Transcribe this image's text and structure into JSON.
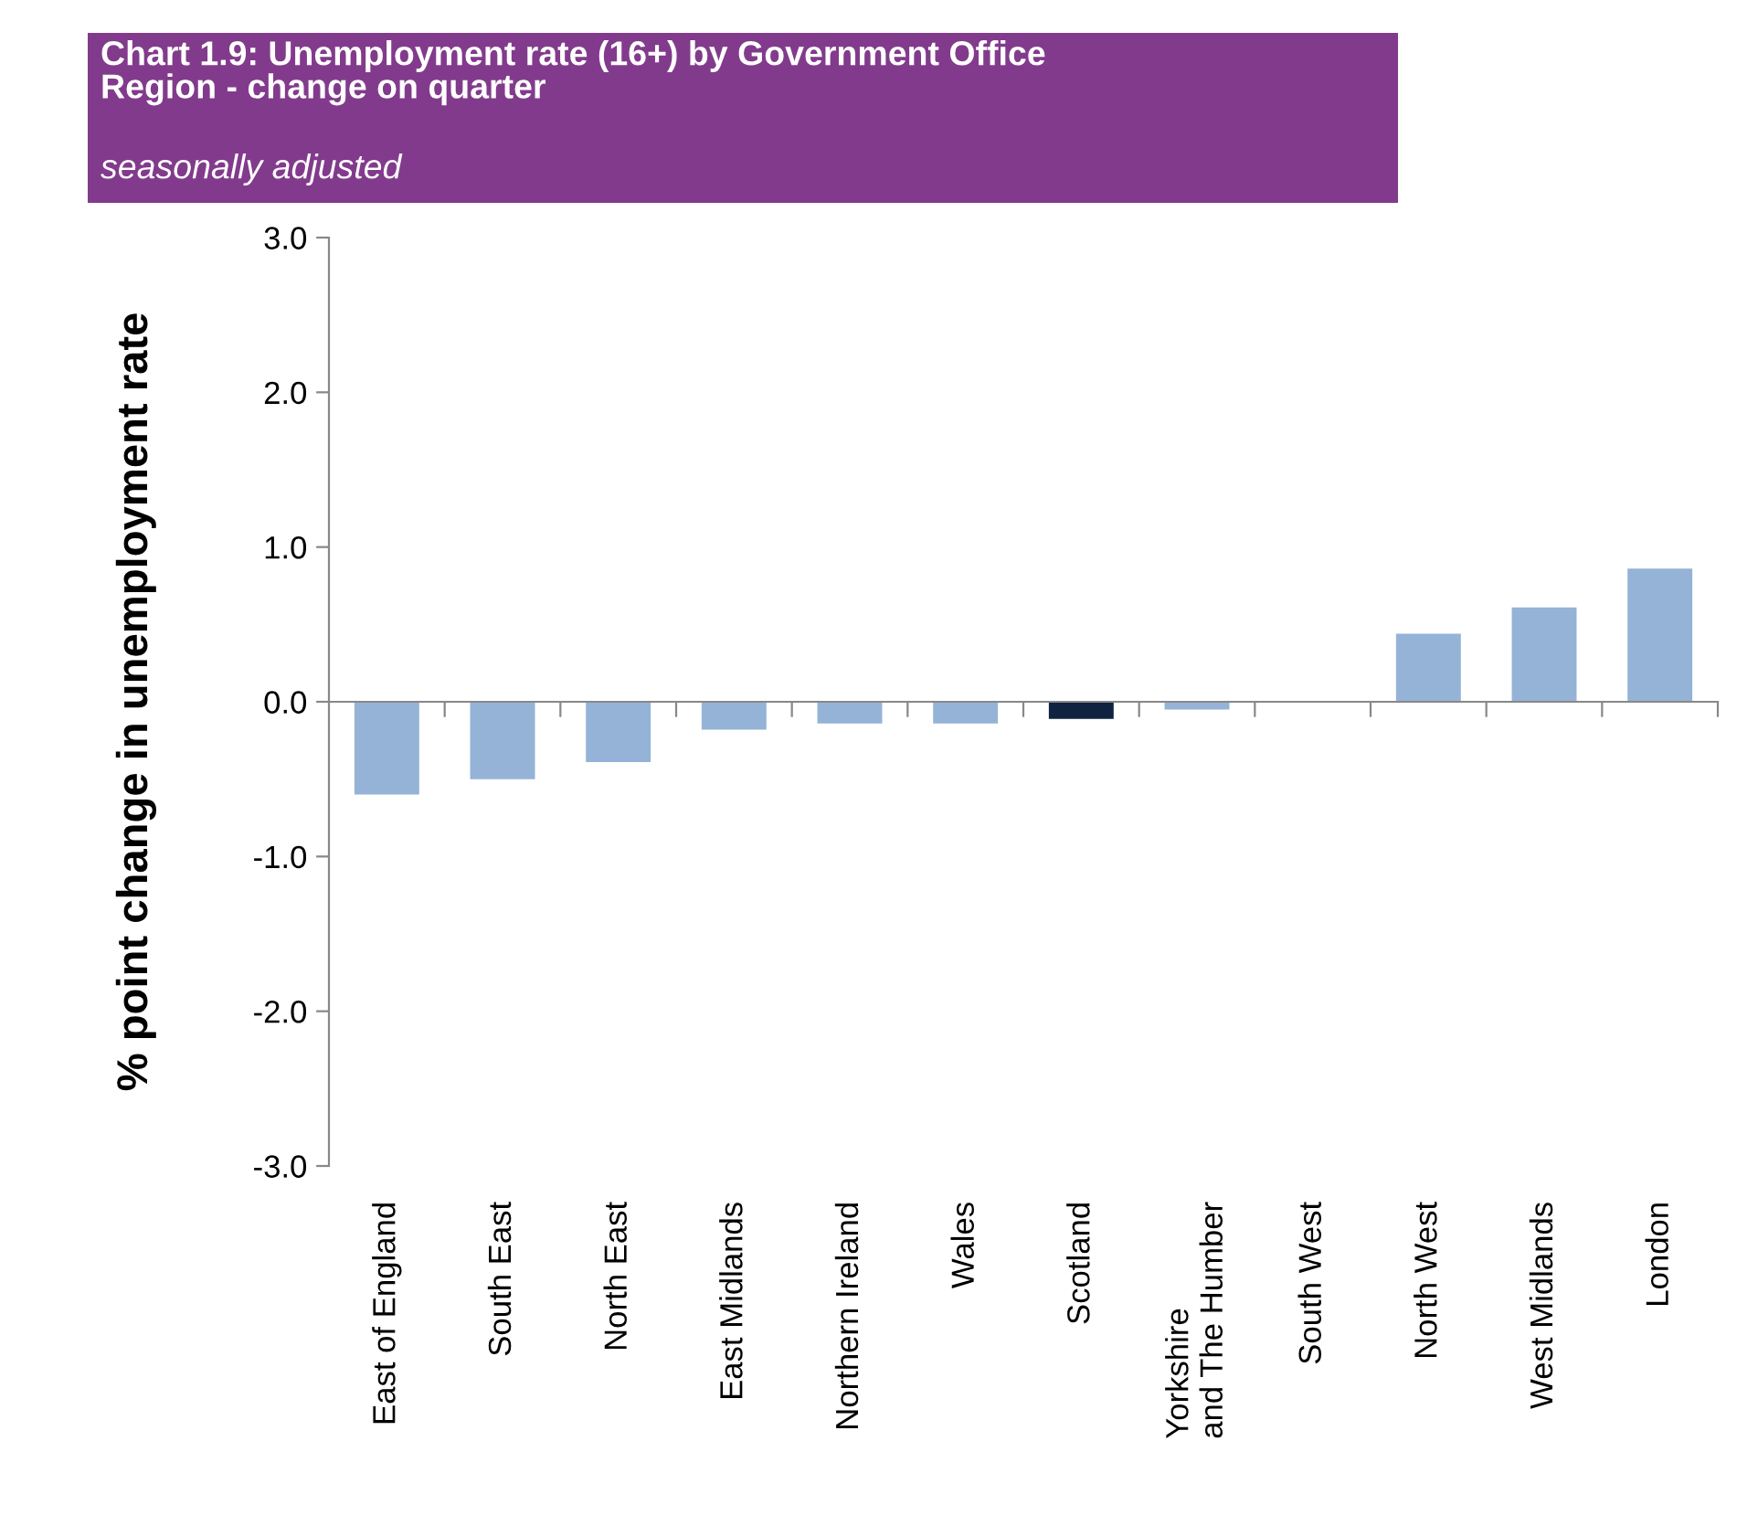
{
  "chart_data": {
    "type": "bar",
    "title": "Chart 1.9: Unemployment rate (16+) by Government Office\nRegion - change on quarter",
    "subtitle": "seasonally adjusted",
    "ylabel": "% point change in unemployment rate",
    "categories": [
      "East of England",
      "South East",
      "North East",
      "East Midlands",
      "Northern Ireland",
      "Wales",
      "Scotland",
      "Yorkshire\nand The Humber",
      "South West",
      "North West",
      "West Midlands",
      "London"
    ],
    "values": [
      -0.6,
      -0.5,
      -0.39,
      -0.18,
      -0.14,
      -0.14,
      -0.11,
      -0.05,
      0.0,
      0.44,
      0.61,
      0.86
    ],
    "colors": [
      "#95b3d7",
      "#95b3d7",
      "#95b3d7",
      "#95b3d7",
      "#95b3d7",
      "#95b3d7",
      "#0f2340",
      "#95b3d7",
      "#95b3d7",
      "#95b3d7",
      "#95b3d7",
      "#95b3d7"
    ],
    "ylim": [
      -3.0,
      3.0
    ],
    "yticks": [
      {
        "value": -3.0,
        "label": "-3.0"
      },
      {
        "value": -2.0,
        "label": "-2.0"
      },
      {
        "value": -1.0,
        "label": "-1.0"
      },
      {
        "value": 0.0,
        "label": "0.0"
      },
      {
        "value": 1.0,
        "label": "1.0"
      },
      {
        "value": 2.0,
        "label": "2.0"
      },
      {
        "value": 3.0,
        "label": "3.0"
      }
    ],
    "legend": false
  }
}
